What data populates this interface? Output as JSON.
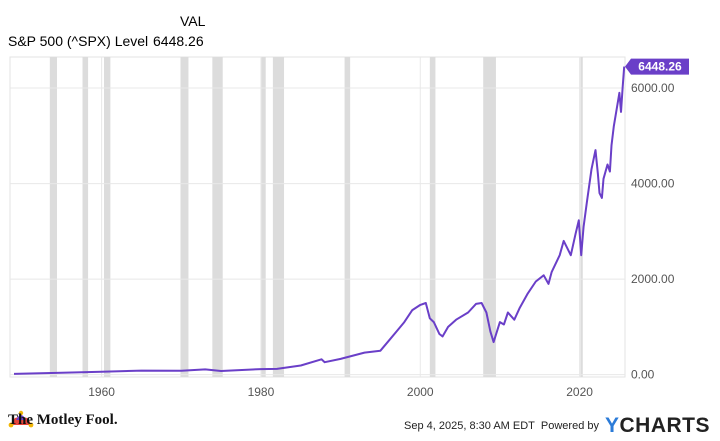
{
  "legend": {
    "header": "VAL",
    "series_name": "S&P 500 (^SPX) Level",
    "series_value": "6448.26"
  },
  "footer": {
    "logo_text": "The Motley Fool.",
    "timestamp": "Sep 4, 2025, 8:30 AM EDT",
    "powered_by": "Powered by",
    "brand": "CHARTS",
    "brand_y": "Y"
  },
  "colors": {
    "series": "#6a3fc8",
    "recession": "#dcdcdc",
    "grid": "#e8e8e8",
    "axis_text": "#555555"
  },
  "chart_data": {
    "type": "line",
    "title": "",
    "xlabel": "",
    "ylabel": "",
    "xlim": [
      1948.5,
      2025.7
    ],
    "ylim": [
      -50,
      6650
    ],
    "x_ticks": [
      1960,
      1980,
      2000,
      2020
    ],
    "x_tick_labels": [
      "1960",
      "1980",
      "2000",
      "2020"
    ],
    "y_ticks": [
      0,
      2000,
      4000,
      6000
    ],
    "y_tick_labels": [
      "0.00",
      "2000.00",
      "4000.00",
      "6000.00"
    ],
    "end_label": "6448.26",
    "recession_shading": [
      [
        1953.5,
        1954.4
      ],
      [
        1957.6,
        1958.3
      ],
      [
        1960.3,
        1961.1
      ],
      [
        1969.9,
        1970.9
      ],
      [
        1973.9,
        1975.2
      ],
      [
        1980.0,
        1980.6
      ],
      [
        1981.5,
        1982.9
      ],
      [
        1990.5,
        1991.2
      ],
      [
        2001.2,
        2001.9
      ],
      [
        2007.9,
        2009.5
      ],
      [
        2020.1,
        2020.4
      ]
    ],
    "series": [
      {
        "name": "S&P 500 (^SPX) Level",
        "x": [
          1949.0,
          1955.0,
          1960.0,
          1965.0,
          1970.0,
          1973.0,
          1975.0,
          1980.0,
          1982.0,
          1985.0,
          1987.6,
          1988.0,
          1990.0,
          1993.0,
          1995.0,
          1996.0,
          1997.0,
          1998.0,
          1999.0,
          2000.0,
          2000.7,
          2001.2,
          2001.7,
          2002.4,
          2002.8,
          2003.5,
          2004.5,
          2006.0,
          2007.0,
          2007.7,
          2008.3,
          2008.8,
          2009.2,
          2010.0,
          2010.5,
          2011.0,
          2011.8,
          2012.5,
          2013.5,
          2014.5,
          2015.5,
          2016.1,
          2016.5,
          2017.5,
          2018.0,
          2018.9,
          2019.5,
          2019.9,
          2020.2,
          2020.5,
          2020.9,
          2021.5,
          2022.0,
          2022.3,
          2022.5,
          2022.8,
          2023.0,
          2023.5,
          2023.8,
          2024.0,
          2024.3,
          2024.6,
          2025.0,
          2025.2,
          2025.4,
          2025.6
        ],
        "y": [
          15,
          40,
          58,
          85,
          80,
          110,
          75,
          115,
          120,
          190,
          320,
          260,
          330,
          460,
          500,
          700,
          900,
          1100,
          1350,
          1460,
          1500,
          1180,
          1100,
          850,
          800,
          1000,
          1150,
          1300,
          1480,
          1500,
          1300,
          900,
          680,
          1100,
          1050,
          1300,
          1150,
          1400,
          1700,
          1950,
          2080,
          1900,
          2150,
          2500,
          2800,
          2500,
          2950,
          3230,
          2500,
          3100,
          3600,
          4300,
          4700,
          4200,
          3800,
          3700,
          4100,
          4400,
          4250,
          4800,
          5200,
          5500,
          5900,
          5500,
          6000,
          6448
        ]
      }
    ]
  }
}
